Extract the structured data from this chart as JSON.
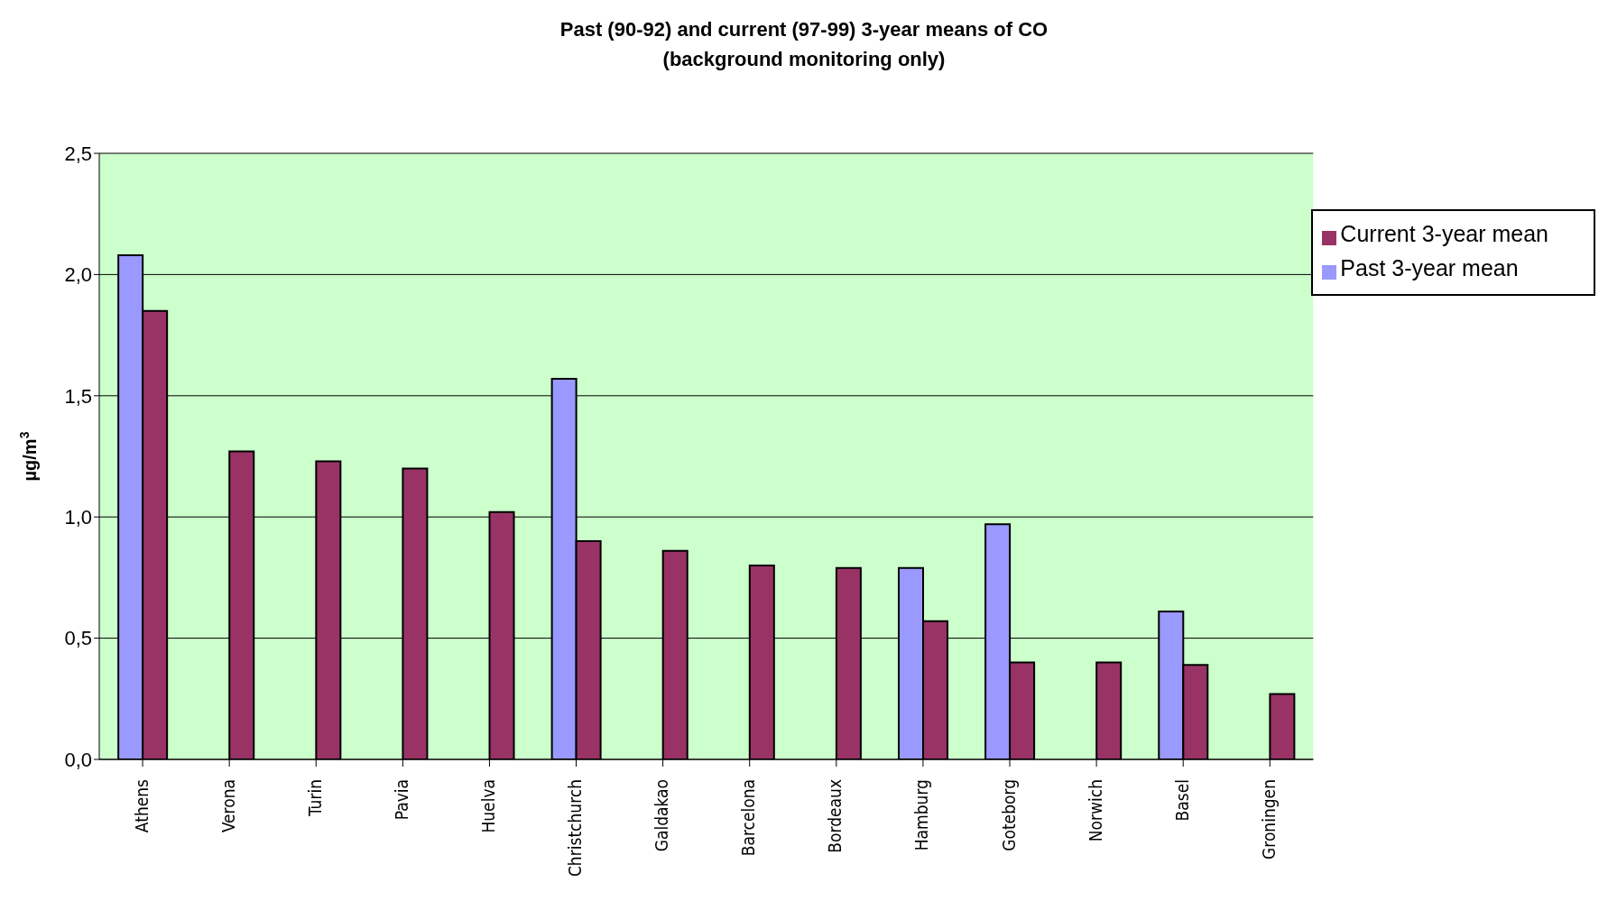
{
  "chart_data": {
    "type": "bar",
    "title": "Past (90-92) and current (97-99) 3-year means of CO",
    "subtitle": "(background monitoring only)",
    "ylabel": "µg/m$^{3}$",
    "categories": [
      "Athens",
      "Verona",
      "Turin",
      "Pavia",
      "Huelva",
      "Christchurch",
      "Galdakao",
      "Barcelona",
      "Bordeaux",
      "Hamburg",
      "Goteborg",
      "Norwich",
      "Basel",
      "Groningen"
    ],
    "series": [
      {
        "name": "Past 3-year mean",
        "color": "#9999ff",
        "values": [
          2.08,
          null,
          null,
          null,
          null,
          1.57,
          null,
          null,
          null,
          0.79,
          0.97,
          null,
          0.61,
          null
        ]
      },
      {
        "name": "Current 3-year mean",
        "color": "#993366",
        "values": [
          1.85,
          1.27,
          1.23,
          1.2,
          1.02,
          0.9,
          0.86,
          0.8,
          0.79,
          0.57,
          0.4,
          0.4,
          0.39,
          0.27
        ]
      }
    ],
    "ylim": [
      0,
      2.5
    ],
    "yticks": [
      {
        "value": 0,
        "label": "0,0"
      },
      {
        "value": 0.5,
        "label": "0,5"
      },
      {
        "value": 1,
        "label": "1,0"
      },
      {
        "value": 1.5,
        "label": "1,5"
      },
      {
        "value": 2,
        "label": "2,0"
      },
      {
        "value": 2.5,
        "label": "2,5"
      }
    ],
    "grid": "y",
    "legend": "top right"
  }
}
